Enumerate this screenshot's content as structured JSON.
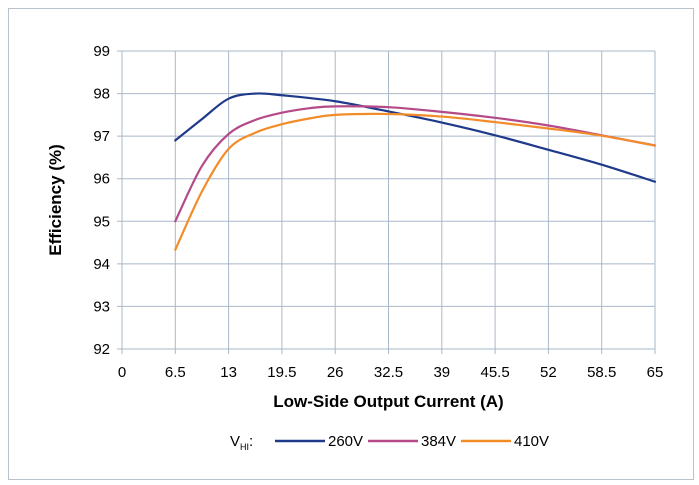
{
  "chart_data": {
    "type": "line",
    "xlabel": "Low-Side Output Current (A)",
    "ylabel": "Efficiency (%)",
    "xlim": [
      0,
      65
    ],
    "ylim": [
      92,
      99
    ],
    "x_ticks": [
      "0",
      "6.5",
      "13",
      "19.5",
      "26",
      "32.5",
      "39",
      "45.5",
      "52",
      "58.5",
      "65"
    ],
    "y_ticks": [
      "92",
      "93",
      "94",
      "95",
      "96",
      "97",
      "98",
      "99"
    ],
    "grid": true,
    "legend_position": "bottom",
    "legend_prefix": "V",
    "legend_prefix_sub": "HI",
    "legend_prefix_suffix": ":",
    "series": [
      {
        "name": "260V",
        "color": "#1f3a8a",
        "points": [
          [
            6.5,
            96.9
          ],
          [
            9.75,
            97.4
          ],
          [
            13,
            97.88
          ],
          [
            16.25,
            98.0
          ],
          [
            19.5,
            97.96
          ],
          [
            26,
            97.82
          ],
          [
            32.5,
            97.58
          ],
          [
            39,
            97.32
          ],
          [
            45.5,
            97.02
          ],
          [
            52,
            96.68
          ],
          [
            58.5,
            96.33
          ],
          [
            65,
            95.93
          ]
        ]
      },
      {
        "name": "384V",
        "color": "#b44b88",
        "points": [
          [
            6.5,
            95.0
          ],
          [
            9.75,
            96.3
          ],
          [
            13,
            97.05
          ],
          [
            16.25,
            97.38
          ],
          [
            19.5,
            97.55
          ],
          [
            23,
            97.66
          ],
          [
            26,
            97.7
          ],
          [
            32.5,
            97.68
          ],
          [
            39,
            97.57
          ],
          [
            45.5,
            97.43
          ],
          [
            52,
            97.25
          ],
          [
            58.5,
            97.02
          ],
          [
            65,
            96.78
          ]
        ]
      },
      {
        "name": "410V",
        "color": "#f28c28",
        "points": [
          [
            6.5,
            94.33
          ],
          [
            9.75,
            95.7
          ],
          [
            13,
            96.7
          ],
          [
            16.25,
            97.08
          ],
          [
            19.5,
            97.28
          ],
          [
            23,
            97.42
          ],
          [
            26,
            97.5
          ],
          [
            32.5,
            97.52
          ],
          [
            39,
            97.46
          ],
          [
            45.5,
            97.33
          ],
          [
            52,
            97.18
          ],
          [
            58.5,
            97.01
          ],
          [
            65,
            96.78
          ]
        ]
      }
    ]
  }
}
